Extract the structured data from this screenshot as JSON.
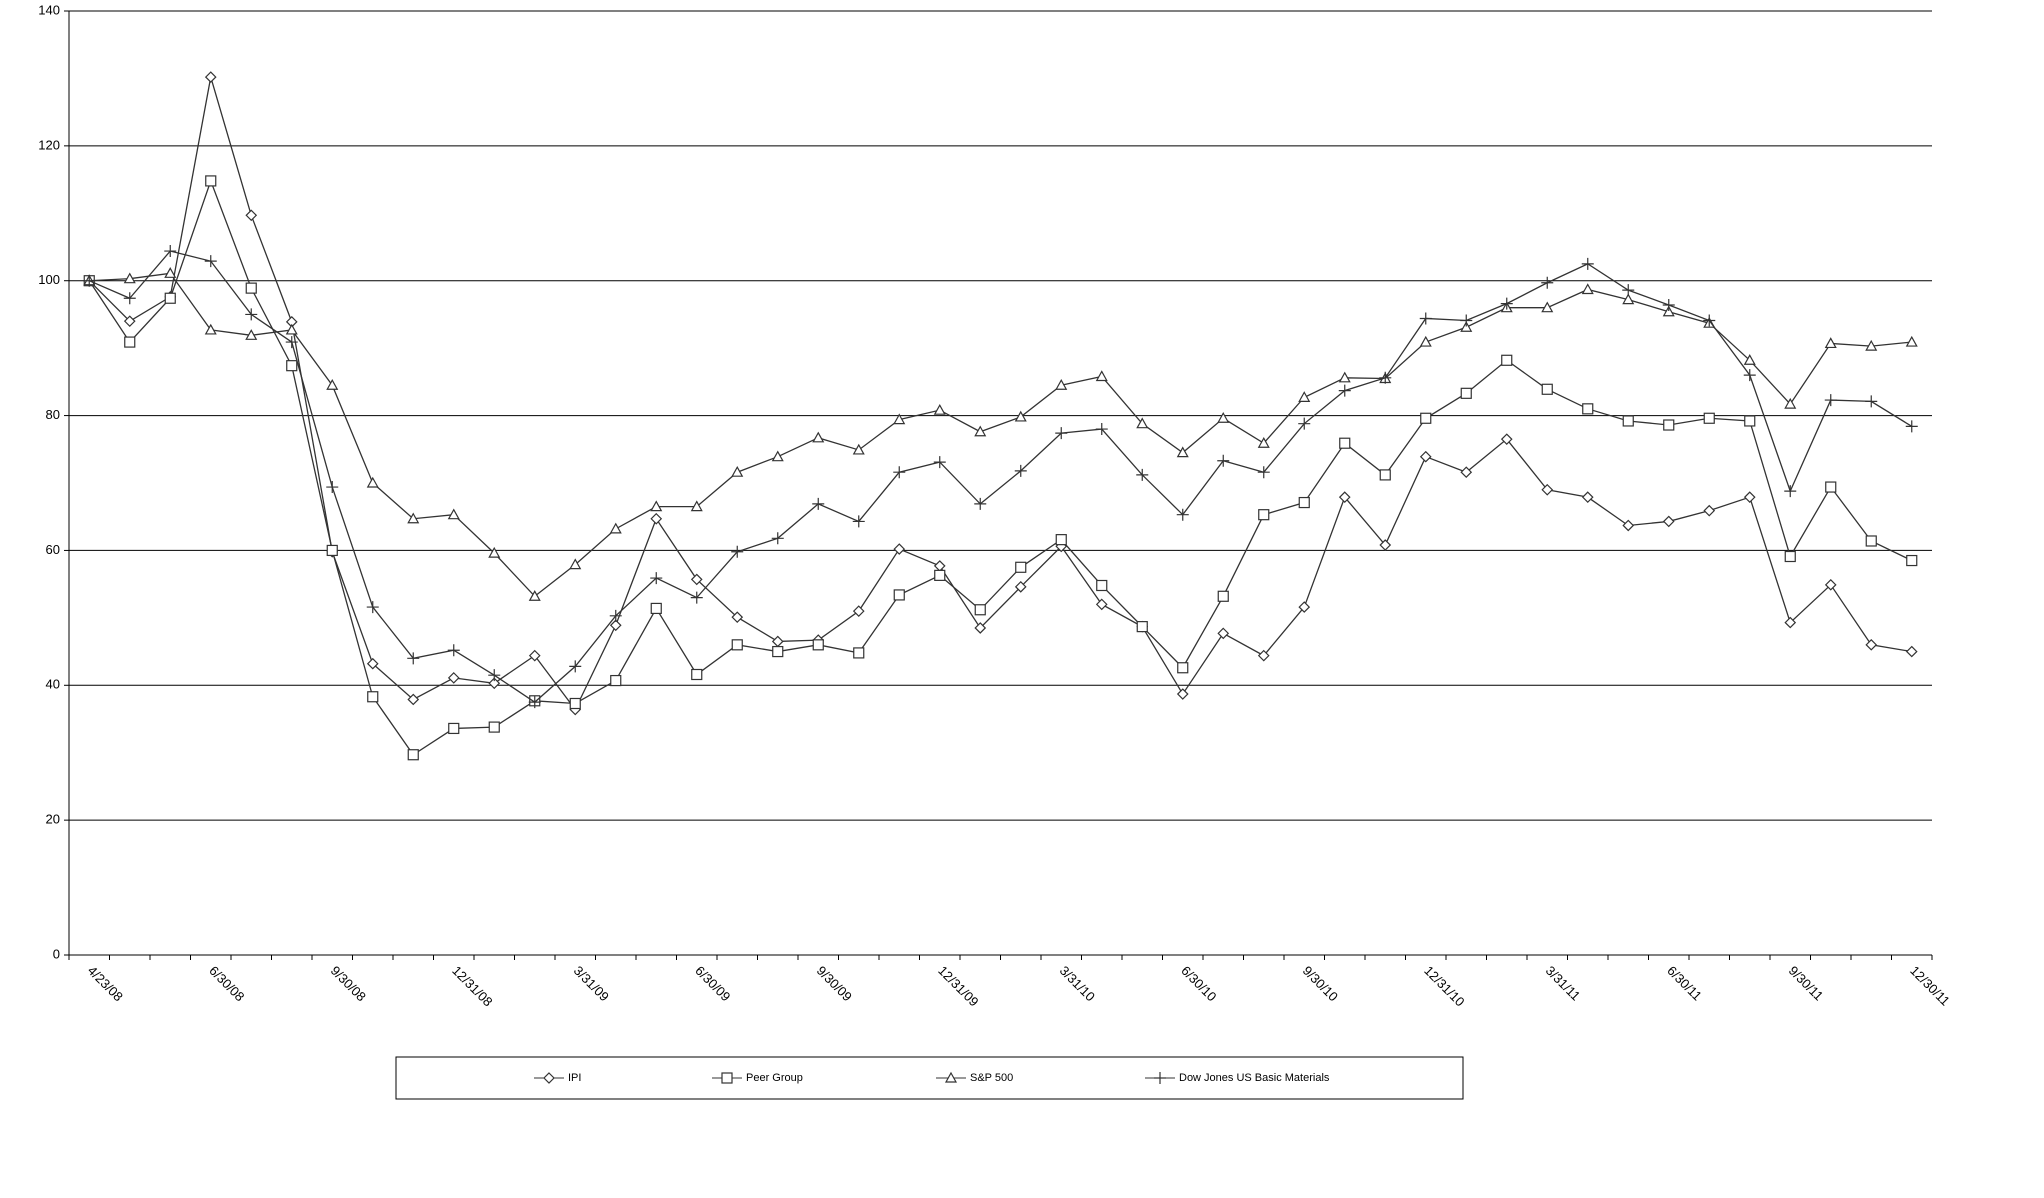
{
  "chart_data": {
    "type": "line",
    "categories": [
      "4/23/08",
      null,
      null,
      "6/30/08",
      null,
      null,
      "9/30/08",
      null,
      null,
      "12/31/08",
      null,
      null,
      "3/31/09",
      null,
      null,
      "6/30/09",
      null,
      null,
      "9/30/09",
      null,
      null,
      "12/31/09",
      null,
      null,
      "3/31/10",
      null,
      null,
      "6/30/10",
      null,
      null,
      "9/30/10",
      null,
      null,
      "12/31/10",
      null,
      null,
      "3/31/11",
      null,
      null,
      "6/30/11",
      null,
      null,
      "9/30/11",
      null,
      null,
      "12/30/11"
    ],
    "series": [
      {
        "name": "IPI",
        "color": "#333333",
        "marker": "diamond",
        "values": [
          100,
          94,
          97.6,
          130.2,
          109.7,
          93.9,
          59.8,
          43.2,
          37.9,
          41.1,
          40.3,
          44.4,
          36.4,
          48.9,
          64.7,
          55.7,
          50.1,
          46.5,
          46.7,
          51,
          60.2,
          57.7,
          48.5,
          54.6,
          60.6,
          52,
          48.7,
          38.7,
          47.7,
          44.4,
          51.6,
          67.9,
          60.8,
          73.9,
          71.6,
          76.5,
          69,
          67.9,
          63.7,
          64.3,
          65.9,
          67.9,
          49.3,
          54.9,
          46,
          45
        ]
      },
      {
        "name": "Peer Group",
        "color": "#333333",
        "marker": "square",
        "values": [
          100,
          90.9,
          97.4,
          114.8,
          98.9,
          87.4,
          60,
          38.3,
          29.7,
          33.6,
          33.8,
          37.7,
          37.3,
          40.7,
          51.4,
          41.6,
          46,
          45,
          46,
          44.8,
          53.4,
          56.3,
          51.2,
          57.5,
          61.6,
          54.8,
          48.7,
          42.6,
          53.2,
          65.3,
          67.1,
          75.9,
          71.2,
          79.6,
          83.3,
          88.2,
          83.9,
          81,
          79.2,
          78.6,
          79.6,
          79.2,
          59.1,
          69.4,
          61.4,
          58.5
        ]
      },
      {
        "name": "S&P 500",
        "color": "#333333",
        "marker": "triangle",
        "values": [
          100,
          100.3,
          101.1,
          92.7,
          91.9,
          92.7,
          84.5,
          70,
          64.7,
          65.3,
          59.6,
          53.2,
          57.9,
          63.2,
          66.5,
          66.5,
          71.6,
          73.9,
          76.7,
          74.9,
          79.4,
          80.8,
          77.6,
          79.8,
          84.5,
          85.8,
          78.8,
          74.5,
          79.6,
          75.9,
          82.7,
          85.6,
          85.5,
          90.9,
          93.1,
          96,
          96,
          98.7,
          97.2,
          95.4,
          93.7,
          88.2,
          81.7,
          90.7,
          90.3,
          90.9
        ]
      },
      {
        "name": "Dow Jones US Basic Materials",
        "color": "#333333",
        "marker": "plus",
        "values": [
          100,
          97.4,
          104.4,
          102.9,
          95,
          90.9,
          69.4,
          51.6,
          44,
          45.2,
          41.5,
          37.5,
          42.8,
          50.3,
          55.9,
          53,
          59.8,
          61.8,
          66.9,
          64.3,
          71.6,
          73.1,
          66.9,
          71.8,
          77.4,
          78,
          71.2,
          65.3,
          73.3,
          71.6,
          78.8,
          83.7,
          85.6,
          94.4,
          94.1,
          96.6,
          99.7,
          102.5,
          98.6,
          96.4,
          94.1,
          86,
          68.8,
          82.3,
          82.1,
          78.4
        ]
      }
    ],
    "ylim": [
      0,
      140
    ],
    "yticks": [
      0,
      20,
      40,
      60,
      80,
      100,
      120,
      140
    ],
    "grid": true,
    "legend": "bottom"
  }
}
